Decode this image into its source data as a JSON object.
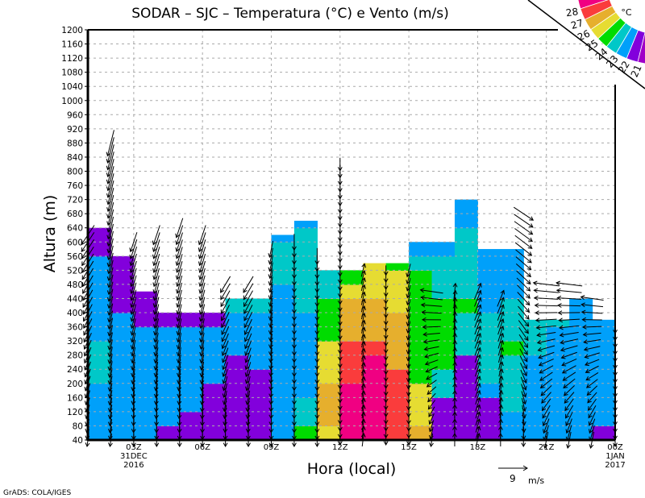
{
  "chart_data": {
    "type": "heatmap",
    "title": "SODAR – SJC – Temperatura (°C) e Vento (m/s)",
    "xlabel": "Hora (local)",
    "ylabel": "Altura (m)",
    "credit": "GrADS: COLA/IGES",
    "x_range_hours": [
      1,
      24
    ],
    "x_ticks": [
      {
        "hour": 3,
        "label": "03Z",
        "sub1": "31DEC",
        "sub2": "2016"
      },
      {
        "hour": 6,
        "label": "06Z"
      },
      {
        "hour": 9,
        "label": "09Z"
      },
      {
        "hour": 12,
        "label": "12Z"
      },
      {
        "hour": 15,
        "label": "15Z"
      },
      {
        "hour": 18,
        "label": "18Z"
      },
      {
        "hour": 21,
        "label": "21Z"
      },
      {
        "hour": 24,
        "label": "00Z",
        "sub1": "1JAN",
        "sub2": "2017"
      }
    ],
    "ylim": [
      40,
      1200
    ],
    "y_tick_step": 40,
    "grid": true,
    "legend": {
      "placement": "top-right",
      "unit": "°C",
      "levels": [
        21,
        22,
        23,
        24,
        25,
        26,
        27,
        28
      ],
      "colors": [
        "#a000c8",
        "#8200dc",
        "#00a0fa",
        "#00c8c8",
        "#00dc00",
        "#e6dc32",
        "#e6af2d",
        "#fa3c3c",
        "#f00082"
      ]
    },
    "level_step_m": 40,
    "temperature_columns": [
      {
        "hour": 1,
        "top": 640,
        "temps": [
          22.5,
          22.5,
          22.5,
          22.5,
          23.5,
          23.5,
          23.5,
          22.5,
          22.5,
          22.5,
          22.5,
          22.5,
          22.5,
          21.5,
          21.5
        ]
      },
      {
        "hour": 2,
        "top": 560,
        "temps": [
          22.5,
          22.5,
          22.5,
          22.5,
          22.5,
          22.5,
          22.5,
          22.5,
          22.5,
          21.5,
          21.5,
          21.5,
          21.5
        ]
      },
      {
        "hour": 3,
        "top": 460,
        "temps": [
          22.5,
          22.5,
          22.5,
          22.5,
          22.5,
          22.5,
          22.5,
          22.5,
          21.5,
          21.5,
          21.5
        ]
      },
      {
        "hour": 4,
        "top": 400,
        "temps": [
          21.5,
          22.5,
          22.5,
          22.5,
          22.5,
          22.5,
          22.5,
          22.5,
          21.5
        ]
      },
      {
        "hour": 5,
        "top": 400,
        "temps": [
          21.5,
          21.5,
          22.5,
          22.5,
          22.5,
          22.5,
          22.5,
          22.5,
          21.5
        ]
      },
      {
        "hour": 6,
        "top": 400,
        "temps": [
          21.5,
          21.5,
          21.5,
          21.5,
          22.5,
          22.5,
          22.5,
          22.5,
          21.5
        ]
      },
      {
        "hour": 7,
        "top": 440,
        "temps": [
          21.5,
          21.5,
          21.5,
          21.5,
          21.5,
          21.5,
          22.5,
          22.5,
          22.5,
          23.5
        ]
      },
      {
        "hour": 8,
        "top": 440,
        "temps": [
          21.5,
          21.5,
          21.5,
          21.5,
          21.5,
          22.5,
          22.5,
          22.5,
          22.5,
          23.5
        ]
      },
      {
        "hour": 9,
        "top": 620,
        "temps": [
          22.5,
          22.5,
          22.5,
          22.5,
          22.5,
          22.5,
          22.5,
          22.5,
          22.5,
          22.5,
          22.5,
          23.5,
          23.5,
          23.5,
          22.5
        ]
      },
      {
        "hour": 10,
        "top": 660,
        "temps": [
          24.5,
          23.5,
          23.5,
          22.5,
          22.5,
          22.5,
          22.5,
          22.5,
          22.5,
          23.5,
          23.5,
          23.5,
          23.5,
          23.5,
          23.5,
          22.5
        ]
      },
      {
        "hour": 11,
        "top": 520,
        "temps": [
          25.5,
          26.5,
          26.5,
          26.5,
          25.5,
          25.5,
          25.5,
          24.5,
          24.5,
          24.5,
          23.5,
          23.5
        ]
      },
      {
        "hour": 12,
        "top": 520,
        "temps": [
          28.5,
          28.5,
          28.5,
          28.5,
          27.5,
          27.5,
          27.5,
          26.5,
          26.5,
          26.5,
          25.5,
          24.5
        ]
      },
      {
        "hour": 13,
        "top": 540,
        "temps": [
          28.5,
          28.5,
          28.5,
          28.5,
          28.5,
          28.5,
          27.5,
          26.5,
          26.5,
          26.5,
          25.5,
          25.5,
          25.5
        ]
      },
      {
        "hour": 14,
        "top": 540,
        "temps": [
          27.5,
          27.5,
          27.5,
          27.5,
          27.5,
          26.5,
          26.5,
          26.5,
          26.5,
          25.5,
          25.5,
          25.5,
          24.5
        ]
      },
      {
        "hour": 15,
        "top": 600,
        "temps": [
          26.5,
          25.5,
          25.5,
          25.5,
          24.5,
          24.5,
          24.5,
          24.5,
          24.5,
          24.5,
          24.5,
          24.5,
          23.5,
          22.5
        ]
      },
      {
        "hour": 16,
        "top": 600,
        "temps": [
          21.5,
          21.5,
          21.5,
          23.5,
          23.5,
          24.5,
          24.5,
          24.5,
          24.5,
          24.5,
          23.5,
          23.5,
          23.5,
          22.5
        ]
      },
      {
        "hour": 17,
        "top": 720,
        "temps": [
          21.5,
          21.5,
          21.5,
          21.5,
          21.5,
          21.5,
          23.5,
          23.5,
          23.5,
          24.5,
          23.5,
          23.5,
          23.5,
          23.5,
          23.5,
          22.5,
          22.5
        ]
      },
      {
        "hour": 18,
        "top": 580,
        "temps": [
          21.5,
          21.5,
          21.5,
          22.5,
          23.5,
          23.5,
          23.5,
          23.5,
          23.5,
          22.5,
          22.5,
          22.5,
          22.5,
          22.5
        ]
      },
      {
        "hour": 19,
        "top": 580,
        "temps": [
          22.5,
          22.5,
          23.5,
          23.5,
          23.5,
          23.5,
          24.5,
          23.5,
          23.5,
          23.5,
          22.5,
          22.5,
          22.5,
          22.5
        ]
      },
      {
        "hour": 20,
        "top": 380,
        "temps": [
          22.5,
          22.5,
          22.5,
          22.5,
          22.5,
          22.5,
          23.5,
          23.5,
          23.5
        ]
      },
      {
        "hour": 21,
        "top": 380,
        "temps": [
          22.5,
          22.5,
          22.5,
          22.5,
          22.5,
          22.5,
          22.5,
          22.5,
          23.5
        ]
      },
      {
        "hour": 22,
        "top": 440,
        "temps": [
          22.5,
          22.5,
          22.5,
          22.5,
          22.5,
          22.5,
          22.5,
          22.5,
          22.5,
          22.5
        ]
      },
      {
        "hour": 23,
        "top": 380,
        "temps": [
          21.5,
          22.5,
          22.5,
          22.5,
          22.5,
          22.5,
          22.5,
          22.5,
          22.5
        ]
      }
    ],
    "wind_step_m": 20,
    "wind_profiles": [
      {
        "hour": 1,
        "top": 620,
        "low_uv": [
          -0.5,
          -4
        ],
        "high_uv": [
          -4,
          -6
        ]
      },
      {
        "hour": 2,
        "top": 880,
        "low_uv": [
          -0.5,
          -4
        ],
        "high_uv": [
          -2,
          -8
        ]
      },
      {
        "hour": 3,
        "top": 600,
        "low_uv": [
          0,
          -4
        ],
        "high_uv": [
          -2,
          -6
        ]
      },
      {
        "hour": 4,
        "top": 620,
        "low_uv": [
          0,
          -4
        ],
        "high_uv": [
          -2,
          -6
        ]
      },
      {
        "hour": 5,
        "top": 640,
        "low_uv": [
          0,
          -4
        ],
        "high_uv": [
          -2,
          -6
        ]
      },
      {
        "hour": 6,
        "top": 620,
        "low_uv": [
          0,
          -4
        ],
        "high_uv": [
          -2,
          -6
        ]
      },
      {
        "hour": 7,
        "top": 480,
        "low_uv": [
          0,
          -4
        ],
        "high_uv": [
          -3,
          -5
        ]
      },
      {
        "hour": 8,
        "top": 480,
        "low_uv": [
          0,
          -4
        ],
        "high_uv": [
          -3,
          -5
        ]
      },
      {
        "hour": 9,
        "top": 580,
        "low_uv": [
          0,
          -4
        ],
        "high_uv": [
          -1,
          -5
        ]
      },
      {
        "hour": 10,
        "top": 600,
        "low_uv": [
          0,
          -4
        ],
        "high_uv": [
          0,
          -5
        ]
      },
      {
        "hour": 11,
        "top": 560,
        "low_uv": [
          0,
          -4
        ],
        "high_uv": [
          0,
          -5
        ]
      },
      {
        "hour": 12,
        "top": 820,
        "low_uv": [
          0,
          -3
        ],
        "high_uv": [
          0,
          -4
        ]
      },
      {
        "hour": 13,
        "top": 520,
        "low_uv": [
          0.5,
          4
        ],
        "high_uv": [
          1,
          4
        ]
      },
      {
        "hour": 14,
        "top": 520,
        "low_uv": [
          0,
          -3
        ],
        "high_uv": [
          0,
          -3
        ]
      },
      {
        "hour": 15,
        "top": 520,
        "low_uv": [
          0,
          -3
        ],
        "high_uv": [
          -1,
          -4
        ]
      },
      {
        "hour": 16,
        "top": 460,
        "low_uv": [
          -0.5,
          -4
        ],
        "high_uv": [
          -7,
          1
        ]
      },
      {
        "hour": 17,
        "top": 460,
        "low_uv": [
          0,
          4
        ],
        "high_uv": [
          0.5,
          5
        ]
      },
      {
        "hour": 18,
        "top": 460,
        "low_uv": [
          1,
          4
        ],
        "high_uv": [
          2,
          5
        ]
      },
      {
        "hour": 19,
        "top": 440,
        "low_uv": [
          0,
          4
        ],
        "high_uv": [
          2,
          5
        ]
      },
      {
        "hour": 20,
        "top": 680,
        "low_uv": [
          0,
          -4
        ],
        "high_uv": [
          6,
          -4
        ]
      },
      {
        "hour": 21,
        "top": 480,
        "low_uv": [
          -1,
          -5
        ],
        "high_uv": [
          -8,
          1
        ]
      },
      {
        "hour": 22,
        "top": 480,
        "low_uv": [
          -1,
          -5
        ],
        "high_uv": [
          -8,
          1
        ]
      },
      {
        "hour": 23,
        "top": 440,
        "low_uv": [
          -1,
          -5
        ],
        "high_uv": [
          -7,
          1
        ]
      },
      {
        "hour": 24,
        "top": 360,
        "low_uv": [
          0,
          -4
        ],
        "high_uv": [
          0,
          -4
        ]
      }
    ],
    "reference_vector": {
      "speed": 9,
      "value_label": "9",
      "unit_label": "m/s"
    }
  }
}
